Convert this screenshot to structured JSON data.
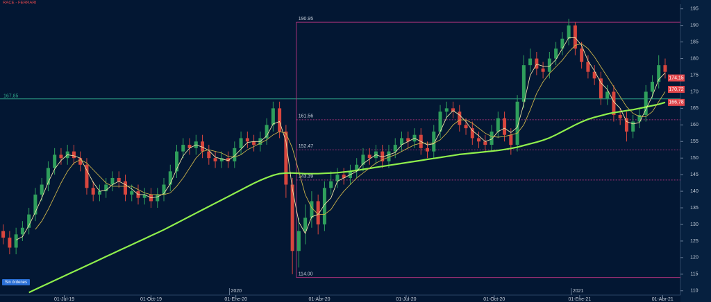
{
  "chart_data": {
    "type": "candlestick",
    "title": "RACE - FERRARI",
    "up_color": "#2f9f5c",
    "down_color": "#d8463e",
    "open": [
      128,
      126,
      123,
      127,
      129,
      133,
      139,
      142,
      147,
      151,
      150,
      152,
      150,
      148,
      141,
      139,
      140,
      142,
      144,
      143,
      139,
      140,
      138,
      139,
      137,
      139,
      142,
      146,
      152,
      154,
      153,
      155,
      152,
      150,
      149,
      150,
      149,
      153,
      156,
      155,
      154,
      156,
      160,
      165,
      158,
      142,
      122,
      128,
      132,
      137,
      130,
      141,
      143,
      145,
      144,
      146,
      148,
      151,
      150,
      152,
      149,
      152,
      154,
      156,
      155,
      157,
      153,
      152,
      158,
      164,
      165,
      164,
      160,
      159,
      156,
      155,
      154,
      158,
      162,
      157,
      154,
      167,
      178,
      180,
      177,
      176,
      180,
      183,
      186,
      190,
      183,
      179,
      176,
      174,
      168,
      170,
      163,
      162,
      158,
      161,
      163,
      170,
      173,
      178
    ],
    "high": [
      130,
      128,
      129,
      131,
      135,
      141,
      144,
      149,
      153,
      153,
      154,
      154,
      152,
      150,
      143,
      142,
      144,
      146,
      146,
      145,
      142,
      142,
      141,
      141,
      141,
      144,
      148,
      154,
      156,
      156,
      157,
      157,
      154,
      152,
      152,
      152,
      155,
      158,
      158,
      157,
      158,
      162,
      167,
      167,
      160,
      144,
      132,
      136,
      140,
      139,
      143,
      146,
      147,
      147,
      148,
      150,
      153,
      153,
      154,
      154,
      154,
      156,
      158,
      158,
      159,
      159,
      155,
      160,
      166,
      167,
      167,
      166,
      162,
      161,
      158,
      157,
      160,
      164,
      164,
      159,
      169,
      181,
      183,
      182,
      179,
      182,
      185,
      188,
      192,
      191,
      185,
      181,
      178,
      176,
      172,
      172,
      165,
      164,
      163,
      165,
      172,
      175,
      181,
      180
    ],
    "low": [
      124,
      121,
      121,
      125,
      127,
      131,
      137,
      140,
      145,
      148,
      148,
      148,
      146,
      139,
      137,
      137,
      138,
      140,
      141,
      137,
      137,
      136,
      136,
      135,
      135,
      137,
      140,
      144,
      150,
      151,
      151,
      150,
      148,
      147,
      147,
      147,
      147,
      151,
      153,
      152,
      152,
      154,
      158,
      156,
      138,
      115,
      117,
      124,
      129,
      127,
      128,
      139,
      141,
      142,
      142,
      144,
      146,
      148,
      148,
      147,
      147,
      150,
      152,
      153,
      153,
      151,
      150,
      150,
      156,
      162,
      162,
      158,
      157,
      154,
      153,
      152,
      152,
      156,
      155,
      151,
      152,
      165,
      176,
      175,
      174,
      174,
      178,
      181,
      184,
      181,
      177,
      174,
      172,
      166,
      166,
      161,
      160,
      155,
      156,
      159,
      161,
      168,
      171,
      174
    ],
    "close": [
      126,
      123,
      127,
      129,
      133,
      139,
      142,
      147,
      151,
      150,
      152,
      150,
      148,
      141,
      139,
      140,
      142,
      144,
      143,
      139,
      140,
      138,
      139,
      137,
      139,
      142,
      146,
      152,
      154,
      153,
      155,
      152,
      150,
      149,
      150,
      149,
      153,
      156,
      155,
      154,
      156,
      160,
      165,
      158,
      142,
      122,
      128,
      132,
      137,
      130,
      141,
      143,
      145,
      144,
      146,
      148,
      151,
      150,
      152,
      149,
      152,
      154,
      156,
      155,
      157,
      153,
      152,
      158,
      164,
      165,
      164,
      160,
      159,
      156,
      155,
      154,
      158,
      162,
      157,
      154,
      167,
      178,
      180,
      177,
      176,
      180,
      183,
      186,
      190,
      183,
      179,
      176,
      174,
      168,
      170,
      163,
      162,
      158,
      161,
      163,
      170,
      173,
      178,
      176
    ],
    "overlays": [
      {
        "color": "#8fef4c",
        "values": [
          null,
          null,
          null,
          null,
          109.5,
          110.4,
          111.3,
          112.2,
          113.1,
          114,
          114.9,
          115.8,
          116.7,
          117.6,
          118.5,
          119.4,
          120.3,
          121.2,
          122.1,
          123,
          123.9,
          124.8,
          125.7,
          126.6,
          127.5,
          128.4,
          129.4,
          130.4,
          131.4,
          132.4,
          133.4,
          134.4,
          135.4,
          136.4,
          137.4,
          138.4,
          139.4,
          140.4,
          141.4,
          142.4,
          143.3,
          144.1,
          144.8,
          145.3,
          145.5,
          145.5,
          145.4,
          145.3,
          145.3,
          145.3,
          145.4,
          145.5,
          145.6,
          145.8,
          146,
          146.3,
          146.6,
          146.9,
          147.2,
          147.5,
          147.8,
          148.1,
          148.4,
          148.7,
          149,
          149.3,
          149.6,
          149.9,
          150.2,
          150.5,
          150.8,
          151.1,
          151.3,
          151.5,
          151.7,
          151.9,
          152.1,
          152.3,
          152.6,
          152.9,
          153.3,
          153.8,
          154.3,
          154.8,
          155.4,
          156.1,
          157,
          158,
          159,
          160,
          160.9,
          161.7,
          162.3,
          162.8,
          163.3,
          163.7,
          164,
          164.3,
          164.6,
          165,
          165.4,
          165.8,
          166.2,
          166.8
        ]
      },
      {
        "color": "#ece3a6",
        "values": [
          null,
          null,
          125.3,
          126.3,
          129.7,
          133.7,
          138,
          142.7,
          146.7,
          149.3,
          151,
          150.7,
          150,
          146.3,
          142.7,
          140,
          140.3,
          142,
          143,
          142,
          140.7,
          139,
          139,
          138,
          138.3,
          139.3,
          142.3,
          146.7,
          150.7,
          153,
          154,
          153.3,
          152.3,
          150.3,
          149.7,
          149.3,
          150.7,
          152.7,
          154.7,
          155,
          155,
          156.7,
          160.3,
          161,
          155,
          140.7,
          130.7,
          127.3,
          132.3,
          133,
          136,
          138,
          143,
          144,
          145,
          146,
          148.3,
          149.7,
          151,
          150.3,
          151,
          151.7,
          154,
          155,
          156,
          155,
          154,
          154.3,
          158,
          162.3,
          164.3,
          163,
          161,
          158.3,
          156.7,
          155,
          155.7,
          158,
          159,
          157.7,
          159.3,
          166.3,
          175,
          178.3,
          177.7,
          177.7,
          179.7,
          183,
          186.3,
          186.3,
          184,
          179.3,
          176.3,
          172.7,
          170.7,
          167,
          165,
          161,
          160.3,
          160.7,
          164.7,
          168.7,
          173.7,
          175.7
        ]
      },
      {
        "color": "#c9b24a",
        "values": [
          null,
          null,
          null,
          null,
          null,
          128.5,
          131,
          134.5,
          138.5,
          142.5,
          146,
          148.5,
          149.5,
          148.5,
          146.5,
          144.5,
          142.5,
          141.5,
          141.5,
          141.5,
          141.5,
          140.5,
          139.5,
          139,
          139,
          139,
          139.5,
          141.5,
          144,
          147,
          150,
          152,
          152.5,
          152,
          151.5,
          150.5,
          150.3,
          151,
          152.5,
          153.5,
          154.5,
          155.5,
          157,
          158,
          157.5,
          153,
          146,
          139,
          135,
          133,
          133,
          134.5,
          137.5,
          140,
          142,
          144,
          145.5,
          147,
          148.5,
          149.5,
          150.3,
          151,
          152,
          153,
          154,
          154.5,
          154.5,
          154.5,
          155.5,
          157.5,
          160,
          161.5,
          161.5,
          160.5,
          159,
          157.5,
          156.5,
          156.3,
          156.5,
          157,
          157.5,
          160,
          164.5,
          169.5,
          173,
          175.5,
          177.5,
          179.5,
          182,
          184,
          184.5,
          183,
          180.5,
          177.5,
          174.5,
          171.5,
          168.5,
          165.5,
          163.5,
          162.5,
          162.5,
          164,
          167,
          170
        ]
      }
    ],
    "hlines": [
      {
        "value": 167.85,
        "label": "167,85",
        "color": "#2fa58a"
      }
    ],
    "fib": {
      "x": 45.6,
      "color": "#a8327a",
      "levels": [
        190.95,
        {
          "value": 114,
          "label": "114.00"
        },
        161.56,
        152.47,
        143.39
      ]
    },
    "price_tags": [
      {
        "value": 174.15,
        "label": "174,15"
      },
      {
        "value": 170.72,
        "label": "170,72"
      },
      {
        "value": 166.78,
        "label": "166,78"
      }
    ],
    "tag_color": "#e0474c",
    "ylim": [
      108.7,
      196.4
    ],
    "yticks": [
      110,
      115,
      120,
      125,
      130,
      135,
      140,
      145,
      150,
      155,
      160,
      165,
      170,
      175,
      180,
      185,
      190,
      195
    ],
    "xlim": [
      -0.5,
      104.3
    ],
    "xticks": [
      {
        "value": 9.5,
        "label": "01-Jul-19"
      },
      {
        "value": 23,
        "label": "01-Oct-19"
      },
      {
        "value": 36.2,
        "label": "01-Ene-20"
      },
      {
        "value": 49.2,
        "label": "01-Abr-20"
      },
      {
        "value": 62.7,
        "label": "01-Jul-20"
      },
      {
        "value": 76.4,
        "label": "01-Oct-20"
      },
      {
        "value": 89.7,
        "label": "01-Ene-21"
      },
      {
        "value": 102.6,
        "label": "01-Abr-21"
      }
    ],
    "year_ticks": [
      {
        "value": 35.2,
        "label": "2020"
      },
      {
        "value": 88.4,
        "label": "2021"
      }
    ],
    "button": "Sin órdenes"
  }
}
